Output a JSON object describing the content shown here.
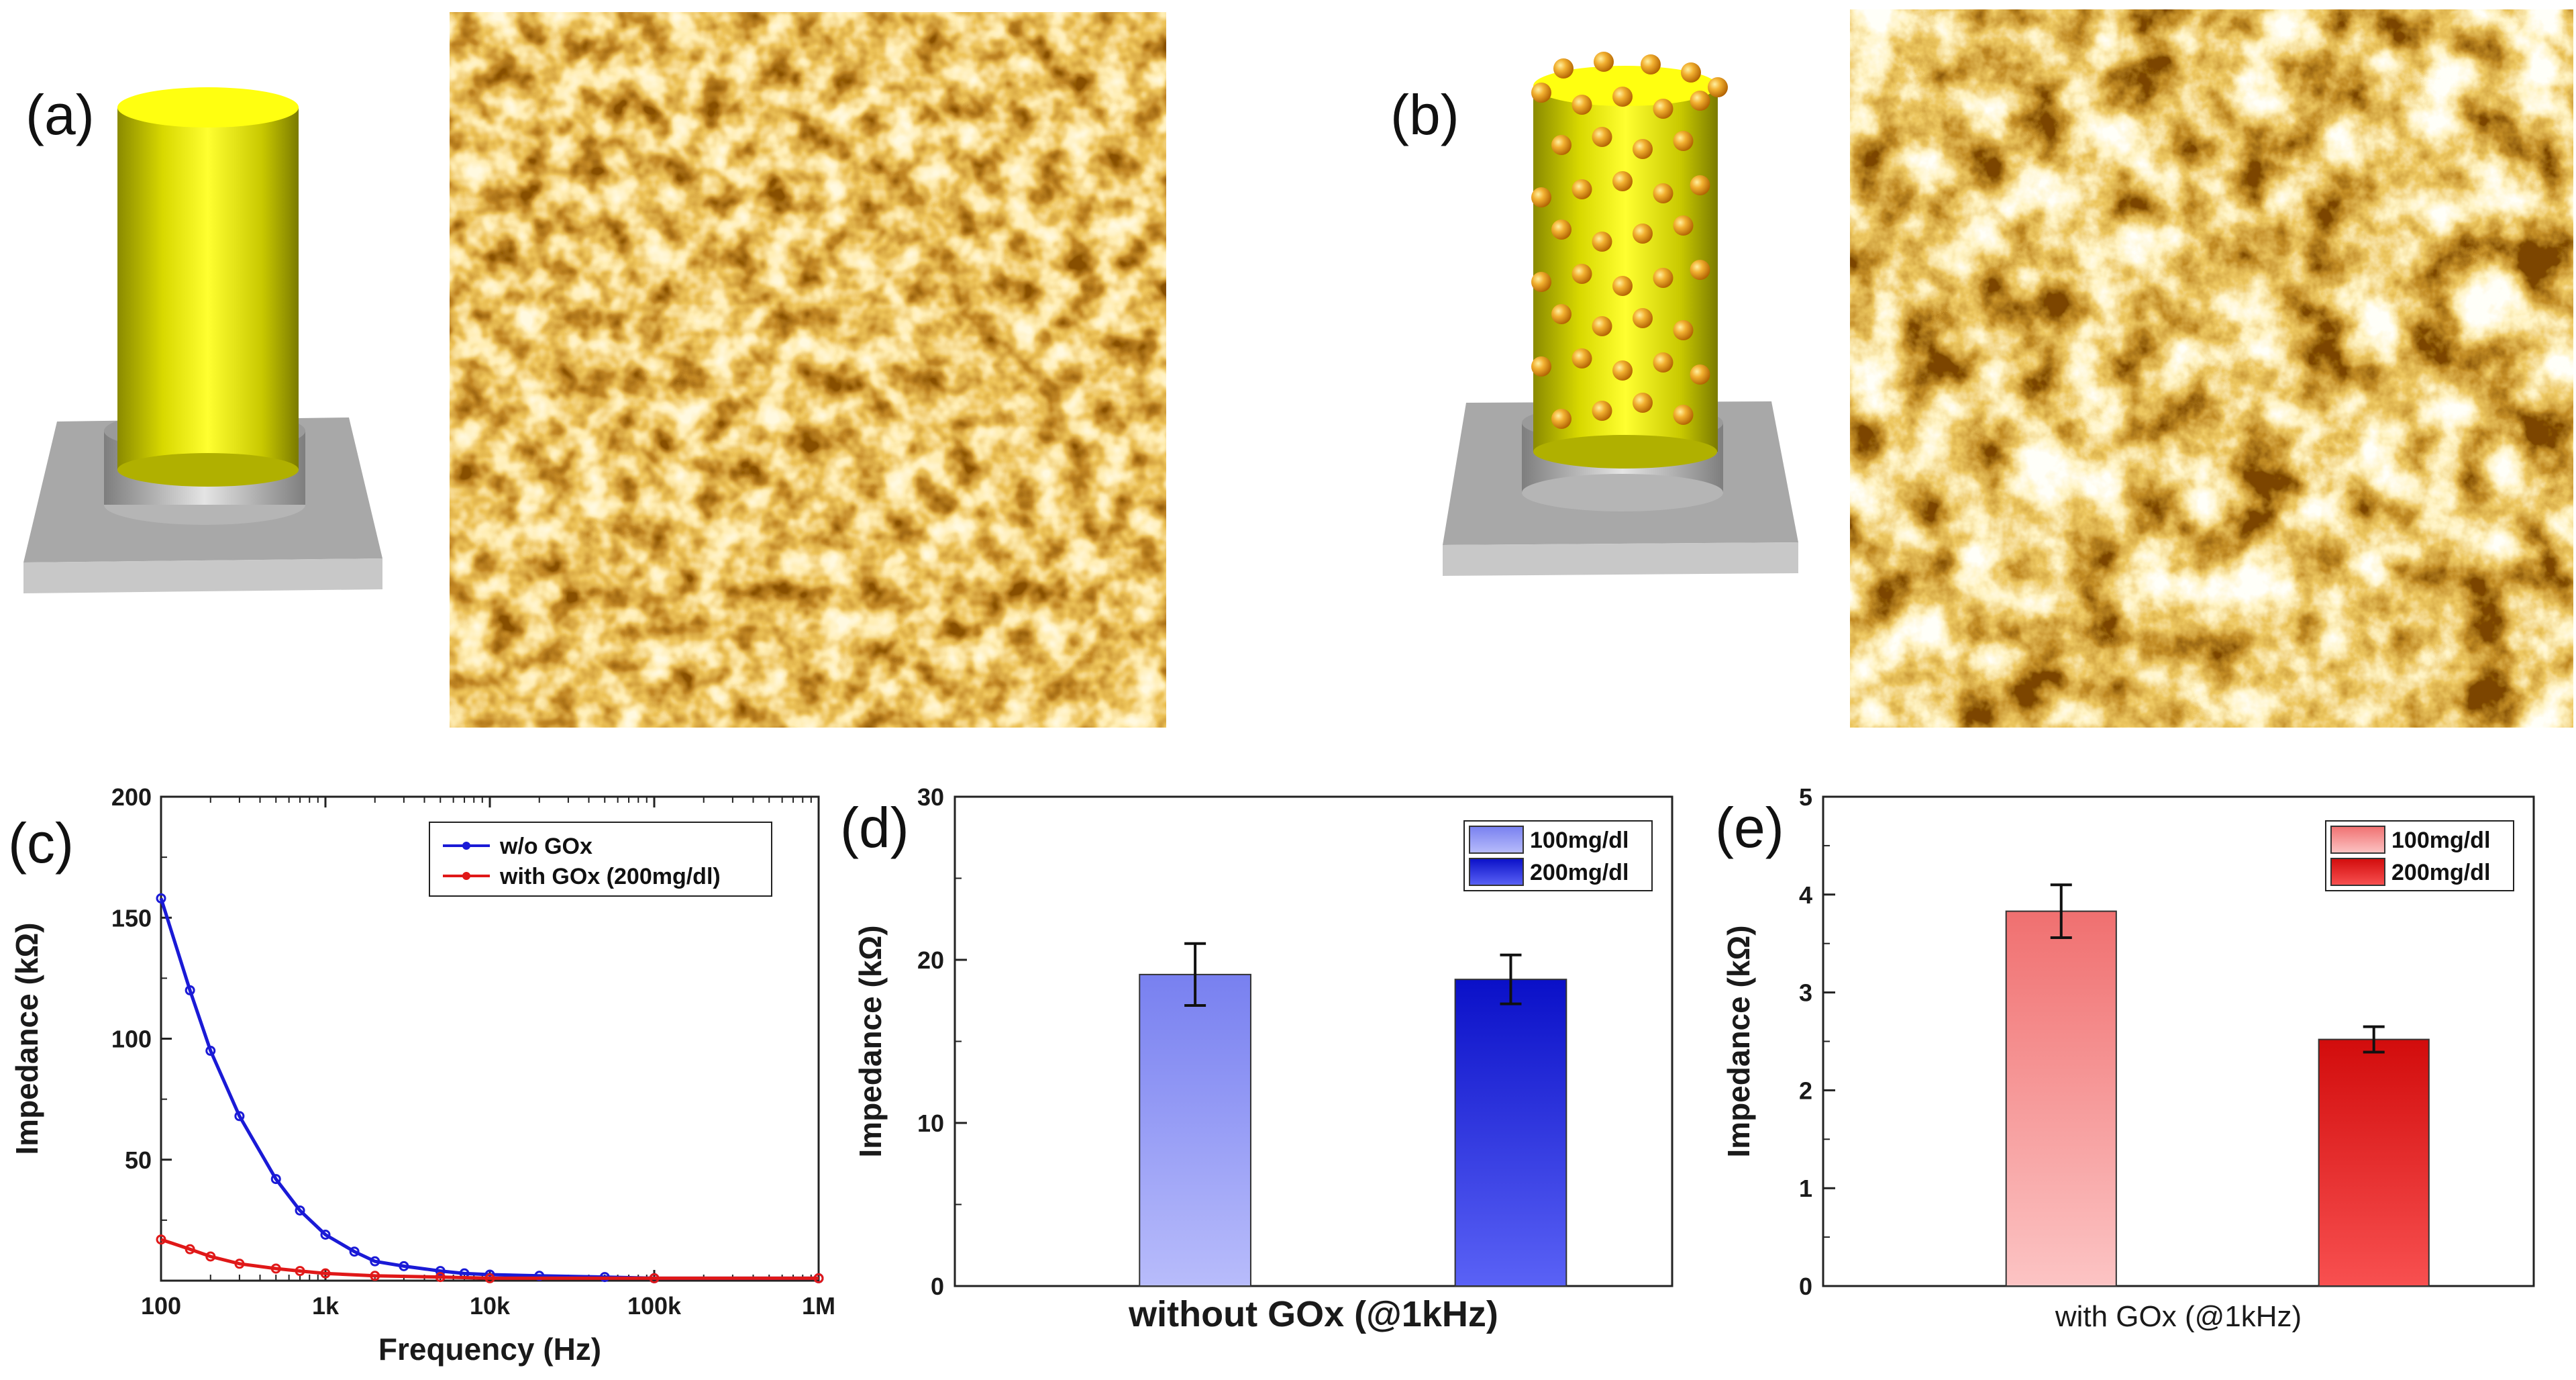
{
  "panels": {
    "a": {
      "label": "(a)"
    },
    "b": {
      "label": "(b)"
    }
  },
  "colors": {
    "electrode_yellow": "#e6e600",
    "substrate_gray": "#a9a9a9",
    "nanoparticle_orange": "#e6a020",
    "afm_dark": "#5a2a00",
    "afm_light": "#ffe6b0",
    "series_blue": "#1a1ad6",
    "series_red": "#e01818",
    "bar_light_blue": "#a8aef7",
    "bar_dark_blue": "#1e28e8",
    "bar_light_red": "#f8a6a6",
    "bar_dark_red": "#ee2020"
  },
  "chart_data": [
    {
      "id": "c",
      "panel_label": "(c)",
      "type": "line",
      "xscale": "log",
      "xlabel": "Frequency (Hz)",
      "ylabel": "Impedance (kΩ)",
      "xlim": [
        100,
        1000000
      ],
      "ylim": [
        0,
        200
      ],
      "xticks": [
        100,
        1000,
        10000,
        100000,
        1000000
      ],
      "xtick_labels": [
        "100",
        "1k",
        "10k",
        "100k",
        "1M"
      ],
      "yticks": [
        50,
        100,
        150,
        200
      ],
      "ytick_labels": [
        "50",
        "100",
        "150",
        "200"
      ],
      "legend_position": "top-right",
      "series": [
        {
          "name": "w/o GOx",
          "color": "#1a1ad6",
          "x": [
            100,
            150,
            200,
            300,
            500,
            700,
            1000,
            1500,
            2000,
            3000,
            5000,
            7000,
            10000,
            20000,
            50000,
            100000,
            1000000
          ],
          "y": [
            158,
            120,
            95,
            68,
            42,
            29,
            19,
            12,
            8,
            6,
            4,
            3,
            2.5,
            2,
            1.5,
            1,
            1
          ]
        },
        {
          "name": "with GOx (200mg/dl)",
          "color": "#e01818",
          "x": [
            100,
            150,
            200,
            300,
            500,
            700,
            1000,
            2000,
            5000,
            10000,
            100000,
            1000000
          ],
          "y": [
            17,
            13,
            10,
            7,
            5,
            4,
            3,
            2,
            1.5,
            1,
            1,
            1
          ]
        }
      ]
    },
    {
      "id": "d",
      "panel_label": "(d)",
      "type": "bar",
      "xlabel": "without GOx (@1kHz)",
      "ylabel": "Impedance (kΩ)",
      "ylim": [
        0,
        30
      ],
      "yticks": [
        0,
        10,
        20,
        30
      ],
      "ytick_labels": [
        "0",
        "10",
        "20",
        "30"
      ],
      "legend_position": "top-right",
      "categories": [
        "100mg/dl",
        "200mg/dl"
      ],
      "values": [
        19.1,
        18.8
      ],
      "errors": [
        1.9,
        1.5
      ],
      "colors": [
        "#a8aef7",
        "#1e28e8"
      ]
    },
    {
      "id": "e",
      "panel_label": "(e)",
      "type": "bar",
      "xlabel": "with GOx (@1kHz)",
      "ylabel": "Impedance (kΩ)",
      "ylim": [
        0,
        5
      ],
      "yticks": [
        0,
        1,
        2,
        3,
        4,
        5
      ],
      "ytick_labels": [
        "0",
        "1",
        "2",
        "3",
        "4",
        "5"
      ],
      "legend_position": "top-right",
      "categories": [
        "100mg/dl",
        "200mg/dl"
      ],
      "values": [
        3.83,
        2.52
      ],
      "errors": [
        0.27,
        0.13
      ],
      "colors": [
        "#f8a6a6",
        "#ee2020"
      ]
    }
  ]
}
